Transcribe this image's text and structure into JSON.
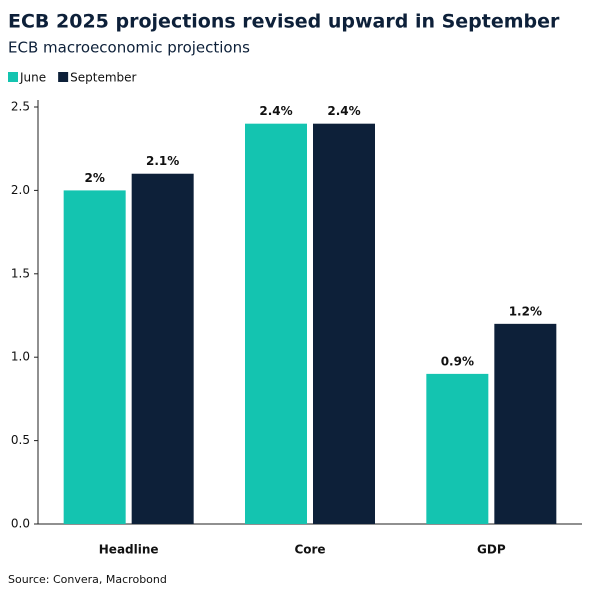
{
  "chart_data": {
    "type": "bar",
    "title": "ECB 2025 projections revised upward in September",
    "subtitle": "ECB macroeconomic projections",
    "source": "Source: Convera, Macrobond",
    "categories": [
      "Headline",
      "Core",
      "GDP"
    ],
    "series": [
      {
        "name": "June",
        "color": "#14c4b0",
        "values": [
          2.0,
          2.4,
          0.9
        ],
        "value_labels": [
          "2%",
          "2.4%",
          "0.9%"
        ]
      },
      {
        "name": "September",
        "color": "#0d2039",
        "values": [
          2.1,
          2.4,
          1.2
        ],
        "value_labels": [
          "2.1%",
          "2.4%",
          "1.2%"
        ]
      }
    ],
    "ylim": [
      0,
      2.5
    ],
    "yticks": [
      {
        "value": 0,
        "label": "0.0"
      },
      0.5,
      {
        "value": 1,
        "label": "1.0"
      },
      1.5,
      {
        "value": 2,
        "label": "2.0"
      },
      2.5
    ],
    "grid": false
  }
}
